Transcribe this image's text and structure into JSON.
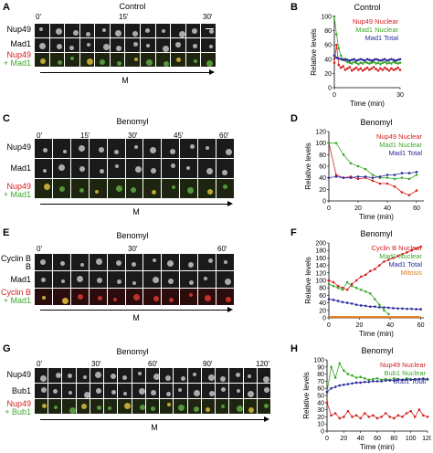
{
  "panels": {
    "A": {
      "letter": "A",
      "title": "Control",
      "times": [
        "0′",
        "15′",
        "30′"
      ],
      "rows": [
        {
          "label": "Nup49",
          "type": "gray"
        },
        {
          "label": "Mad1",
          "type": "gray"
        },
        {
          "label": "Nup49",
          "label2": "+ Mad1",
          "type": "merge"
        }
      ],
      "m_label": "M"
    },
    "C": {
      "letter": "C",
      "title": "Benomyl",
      "times": [
        "0′",
        "15′",
        "30′",
        "45′",
        "60′"
      ],
      "rows": [
        {
          "label": "Nup49",
          "type": "gray"
        },
        {
          "label": "Mad1",
          "type": "gray"
        },
        {
          "label": "Nup49",
          "label2": "+ Mad1",
          "type": "merge"
        }
      ],
      "m_label": "M"
    },
    "E": {
      "letter": "E",
      "title": "Benomyl",
      "times": [
        "0′",
        "30′",
        "60′"
      ],
      "rows": [
        {
          "label": "Cyclin B",
          "type": "gray"
        },
        {
          "label": "Mad1",
          "type": "gray"
        },
        {
          "label": "Cyclin B",
          "label2": "+ Mad1",
          "type": "mergered"
        }
      ],
      "m_label": "M"
    },
    "G": {
      "letter": "G",
      "title": "Benomyl",
      "times": [
        "0′",
        "30′",
        "60′",
        "90′",
        "120′"
      ],
      "rows": [
        {
          "label": "Nup49",
          "type": "gray"
        },
        {
          "label": "Bub1",
          "type": "gray"
        },
        {
          "label": "Nup49",
          "label2": "+ Bub1",
          "type": "merge"
        }
      ],
      "m_label": "M"
    }
  },
  "colors": {
    "red": "#d42020",
    "green": "#3da82b",
    "blue": "#2a2a9c",
    "orange": "#e07a1a"
  },
  "chart_data": [
    {
      "panel": "B",
      "type": "line",
      "title": "Control",
      "xlabel": "Time (min)",
      "ylabel": "Relative levels",
      "xlim": [
        0,
        30
      ],
      "ylim": [
        0,
        100
      ],
      "xticks": [
        0,
        30
      ],
      "yticks": [
        0,
        20,
        40,
        60,
        80,
        100
      ],
      "series": [
        {
          "name": "Nup49 Nuclear",
          "color": "#d42020",
          "x": [
            0,
            1,
            2,
            3,
            4,
            5,
            6,
            7,
            8,
            9,
            10,
            11,
            12,
            13,
            14,
            15,
            16,
            17,
            18,
            19,
            20,
            21,
            22,
            23,
            24,
            25,
            26,
            27,
            28,
            29,
            30
          ],
          "y": [
            35,
            60,
            32,
            28,
            30,
            25,
            27,
            29,
            24,
            26,
            28,
            25,
            27,
            24,
            26,
            28,
            25,
            27,
            29,
            26,
            24,
            27,
            25,
            28,
            26,
            24,
            27,
            25,
            26,
            28,
            25
          ]
        },
        {
          "name": "Mad1 Nuclear",
          "color": "#3da82b",
          "x": [
            0,
            1,
            2,
            3,
            4,
            5,
            6,
            7,
            8,
            9,
            10,
            11,
            12,
            13,
            14,
            15,
            16,
            17,
            18,
            19,
            20,
            21,
            22,
            23,
            24,
            25,
            26,
            27,
            28,
            29,
            30
          ],
          "y": [
            100,
            75,
            55,
            45,
            40,
            38,
            36,
            35,
            34,
            36,
            35,
            33,
            35,
            34,
            36,
            35,
            34,
            35,
            36,
            34,
            35,
            33,
            35,
            36,
            34,
            35,
            34,
            36,
            35,
            34,
            35
          ]
        },
        {
          "name": "Mad1 Total",
          "color": "#2a2a9c",
          "x": [
            0,
            1,
            2,
            3,
            4,
            5,
            6,
            7,
            8,
            9,
            10,
            11,
            12,
            13,
            14,
            15,
            16,
            17,
            18,
            19,
            20,
            21,
            22,
            23,
            24,
            25,
            26,
            27,
            28,
            29,
            30
          ],
          "y": [
            45,
            42,
            41,
            40,
            39,
            40,
            39,
            38,
            39,
            40,
            38,
            39,
            40,
            39,
            38,
            40,
            39,
            38,
            39,
            40,
            39,
            38,
            39,
            40,
            38,
            39,
            40,
            39,
            38,
            39,
            40
          ]
        }
      ]
    },
    {
      "panel": "D",
      "type": "line",
      "title": "Benomyl",
      "xlabel": "Time (min)",
      "ylabel": "Relative levels",
      "xlim": [
        0,
        65
      ],
      "ylim": [
        0,
        120
      ],
      "xticks": [
        0,
        20,
        40,
        60
      ],
      "yticks": [
        0,
        20,
        40,
        60,
        80,
        100,
        120
      ],
      "series": [
        {
          "name": "Nup49 Nuclear",
          "color": "#d42020",
          "x": [
            0,
            5,
            10,
            15,
            20,
            25,
            30,
            35,
            40,
            45,
            50,
            55,
            60
          ],
          "y": [
            100,
            45,
            40,
            42,
            38,
            40,
            35,
            30,
            30,
            25,
            15,
            10,
            18
          ]
        },
        {
          "name": "Mad1 Nuclear",
          "color": "#3da82b",
          "x": [
            0,
            5,
            10,
            15,
            20,
            25,
            30,
            35,
            40,
            45,
            50,
            55,
            60
          ],
          "y": [
            100,
            100,
            80,
            65,
            60,
            55,
            45,
            40,
            40,
            38,
            40,
            38,
            45
          ]
        },
        {
          "name": "Mad1 Total",
          "color": "#2a2a9c",
          "x": [
            0,
            5,
            10,
            15,
            20,
            25,
            30,
            35,
            40,
            45,
            50,
            55,
            60
          ],
          "y": [
            40,
            42,
            40,
            40,
            42,
            42,
            40,
            42,
            45,
            45,
            48,
            48,
            50
          ]
        }
      ]
    },
    {
      "panel": "F",
      "type": "line",
      "title": "Benomyl",
      "xlabel": "Time (min)",
      "ylabel": "Relative levels",
      "xlim": [
        0,
        62
      ],
      "ylim": [
        0,
        200
      ],
      "xticks": [
        0,
        20,
        40,
        60
      ],
      "yticks": [
        0,
        20,
        40,
        60,
        80,
        100,
        120,
        140,
        160,
        180,
        200
      ],
      "series": [
        {
          "name": "Cyclin B Nuclear",
          "color": "#d42020",
          "x": [
            0,
            3,
            6,
            9,
            12,
            15,
            18,
            21,
            24,
            27,
            30,
            33,
            36,
            39,
            42,
            45,
            48,
            51,
            54,
            57,
            60
          ],
          "y": [
            100,
            95,
            85,
            80,
            75,
            90,
            100,
            110,
            115,
            125,
            130,
            140,
            150,
            155,
            160,
            165,
            170,
            175,
            180,
            185,
            190
          ]
        },
        {
          "name": "Mad1 Nuclear",
          "color": "#3da82b",
          "x": [
            0,
            3,
            6,
            9,
            12,
            15,
            18,
            21,
            24,
            27,
            30,
            33,
            36,
            39
          ],
          "y": [
            90,
            85,
            80,
            75,
            95,
            85,
            80,
            75,
            70,
            65,
            50,
            35,
            20,
            10
          ]
        },
        {
          "name": "Mad1 Total",
          "color": "#2a2a9c",
          "x": [
            0,
            3,
            6,
            9,
            12,
            15,
            18,
            21,
            24,
            27,
            30,
            33,
            36,
            39,
            42,
            45,
            48,
            51,
            54,
            57,
            60
          ],
          "y": [
            50,
            48,
            45,
            42,
            40,
            38,
            35,
            33,
            32,
            30,
            30,
            28,
            28,
            27,
            26,
            25,
            25,
            24,
            24,
            23,
            23
          ]
        },
        {
          "name": "Mitosis",
          "color": "#e07a1a",
          "x": [
            0,
            60
          ],
          "y": [
            2,
            2
          ]
        }
      ]
    },
    {
      "panel": "H",
      "type": "line",
      "title": "Benomyl",
      "xlabel": "Time (min)",
      "ylabel": "Relative levels",
      "xlim": [
        0,
        120
      ],
      "ylim": [
        0,
        100
      ],
      "xticks": [
        0,
        20,
        40,
        60,
        80,
        100,
        120
      ],
      "yticks": [
        0,
        10,
        20,
        30,
        40,
        50,
        60,
        70,
        80,
        90,
        100
      ],
      "series": [
        {
          "name": "Nup49 Nuclear",
          "color": "#d42020",
          "x": [
            0,
            5,
            10,
            15,
            20,
            25,
            30,
            35,
            40,
            45,
            50,
            55,
            60,
            65,
            70,
            75,
            80,
            85,
            90,
            95,
            100,
            105,
            110,
            115,
            120
          ],
          "y": [
            40,
            22,
            25,
            18,
            20,
            28,
            20,
            22,
            18,
            25,
            20,
            22,
            18,
            20,
            25,
            20,
            18,
            22,
            20,
            25,
            28,
            20,
            30,
            22,
            20
          ]
        },
        {
          "name": "Bub1 Nuclear",
          "color": "#3da82b",
          "x": [
            0,
            5,
            10,
            15,
            20,
            25,
            30,
            35,
            40,
            45,
            50,
            55,
            60,
            65,
            70,
            75,
            80,
            85,
            90,
            95,
            100,
            105,
            110,
            115,
            120
          ],
          "y": [
            55,
            90,
            75,
            95,
            85,
            80,
            78,
            75,
            76,
            74,
            72,
            73,
            74,
            72,
            73,
            72,
            74,
            73,
            72,
            74,
            73,
            72,
            73,
            74,
            72
          ]
        },
        {
          "name": "Bub1 Total",
          "color": "#2a2a9c",
          "x": [
            0,
            5,
            10,
            15,
            20,
            25,
            30,
            35,
            40,
            45,
            50,
            55,
            60,
            65,
            70,
            75,
            80,
            85,
            90,
            95,
            100,
            105,
            110,
            115,
            120
          ],
          "y": [
            55,
            60,
            62,
            64,
            65,
            66,
            67,
            68,
            68,
            69,
            69,
            70,
            70,
            70,
            71,
            71,
            71,
            72,
            72,
            72,
            72,
            73,
            73,
            73,
            73
          ]
        }
      ]
    }
  ]
}
